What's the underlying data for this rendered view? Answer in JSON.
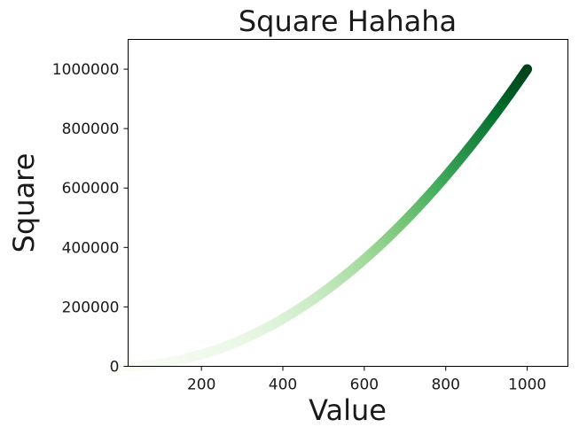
{
  "chart_data": {
    "type": "scatter",
    "title": "Square Hahaha",
    "xlabel": "Value",
    "ylabel": "Square",
    "xlim": [
      20,
      1100
    ],
    "ylim": [
      0,
      1100000
    ],
    "xticks": [
      200,
      400,
      600,
      800,
      1000
    ],
    "xtick_labels": [
      "200",
      "400",
      "600",
      "800",
      "1000"
    ],
    "yticks": [
      0,
      200000,
      400000,
      600000,
      800000,
      1000000
    ],
    "ytick_labels": [
      "0",
      "200000",
      "400000",
      "600000",
      "800000",
      "1000000"
    ],
    "x_start": 1,
    "x_end": 1000,
    "relation": "y = x^2",
    "colormap": "Greens",
    "colormap_stops": [
      "#f7fcf5",
      "#e5f5e0",
      "#c7e9c0",
      "#a1d99b",
      "#74c476",
      "#41ab5d",
      "#238b45",
      "#006d2c",
      "#00441b"
    ],
    "color_by": "y",
    "grid": false,
    "legend": "none"
  }
}
